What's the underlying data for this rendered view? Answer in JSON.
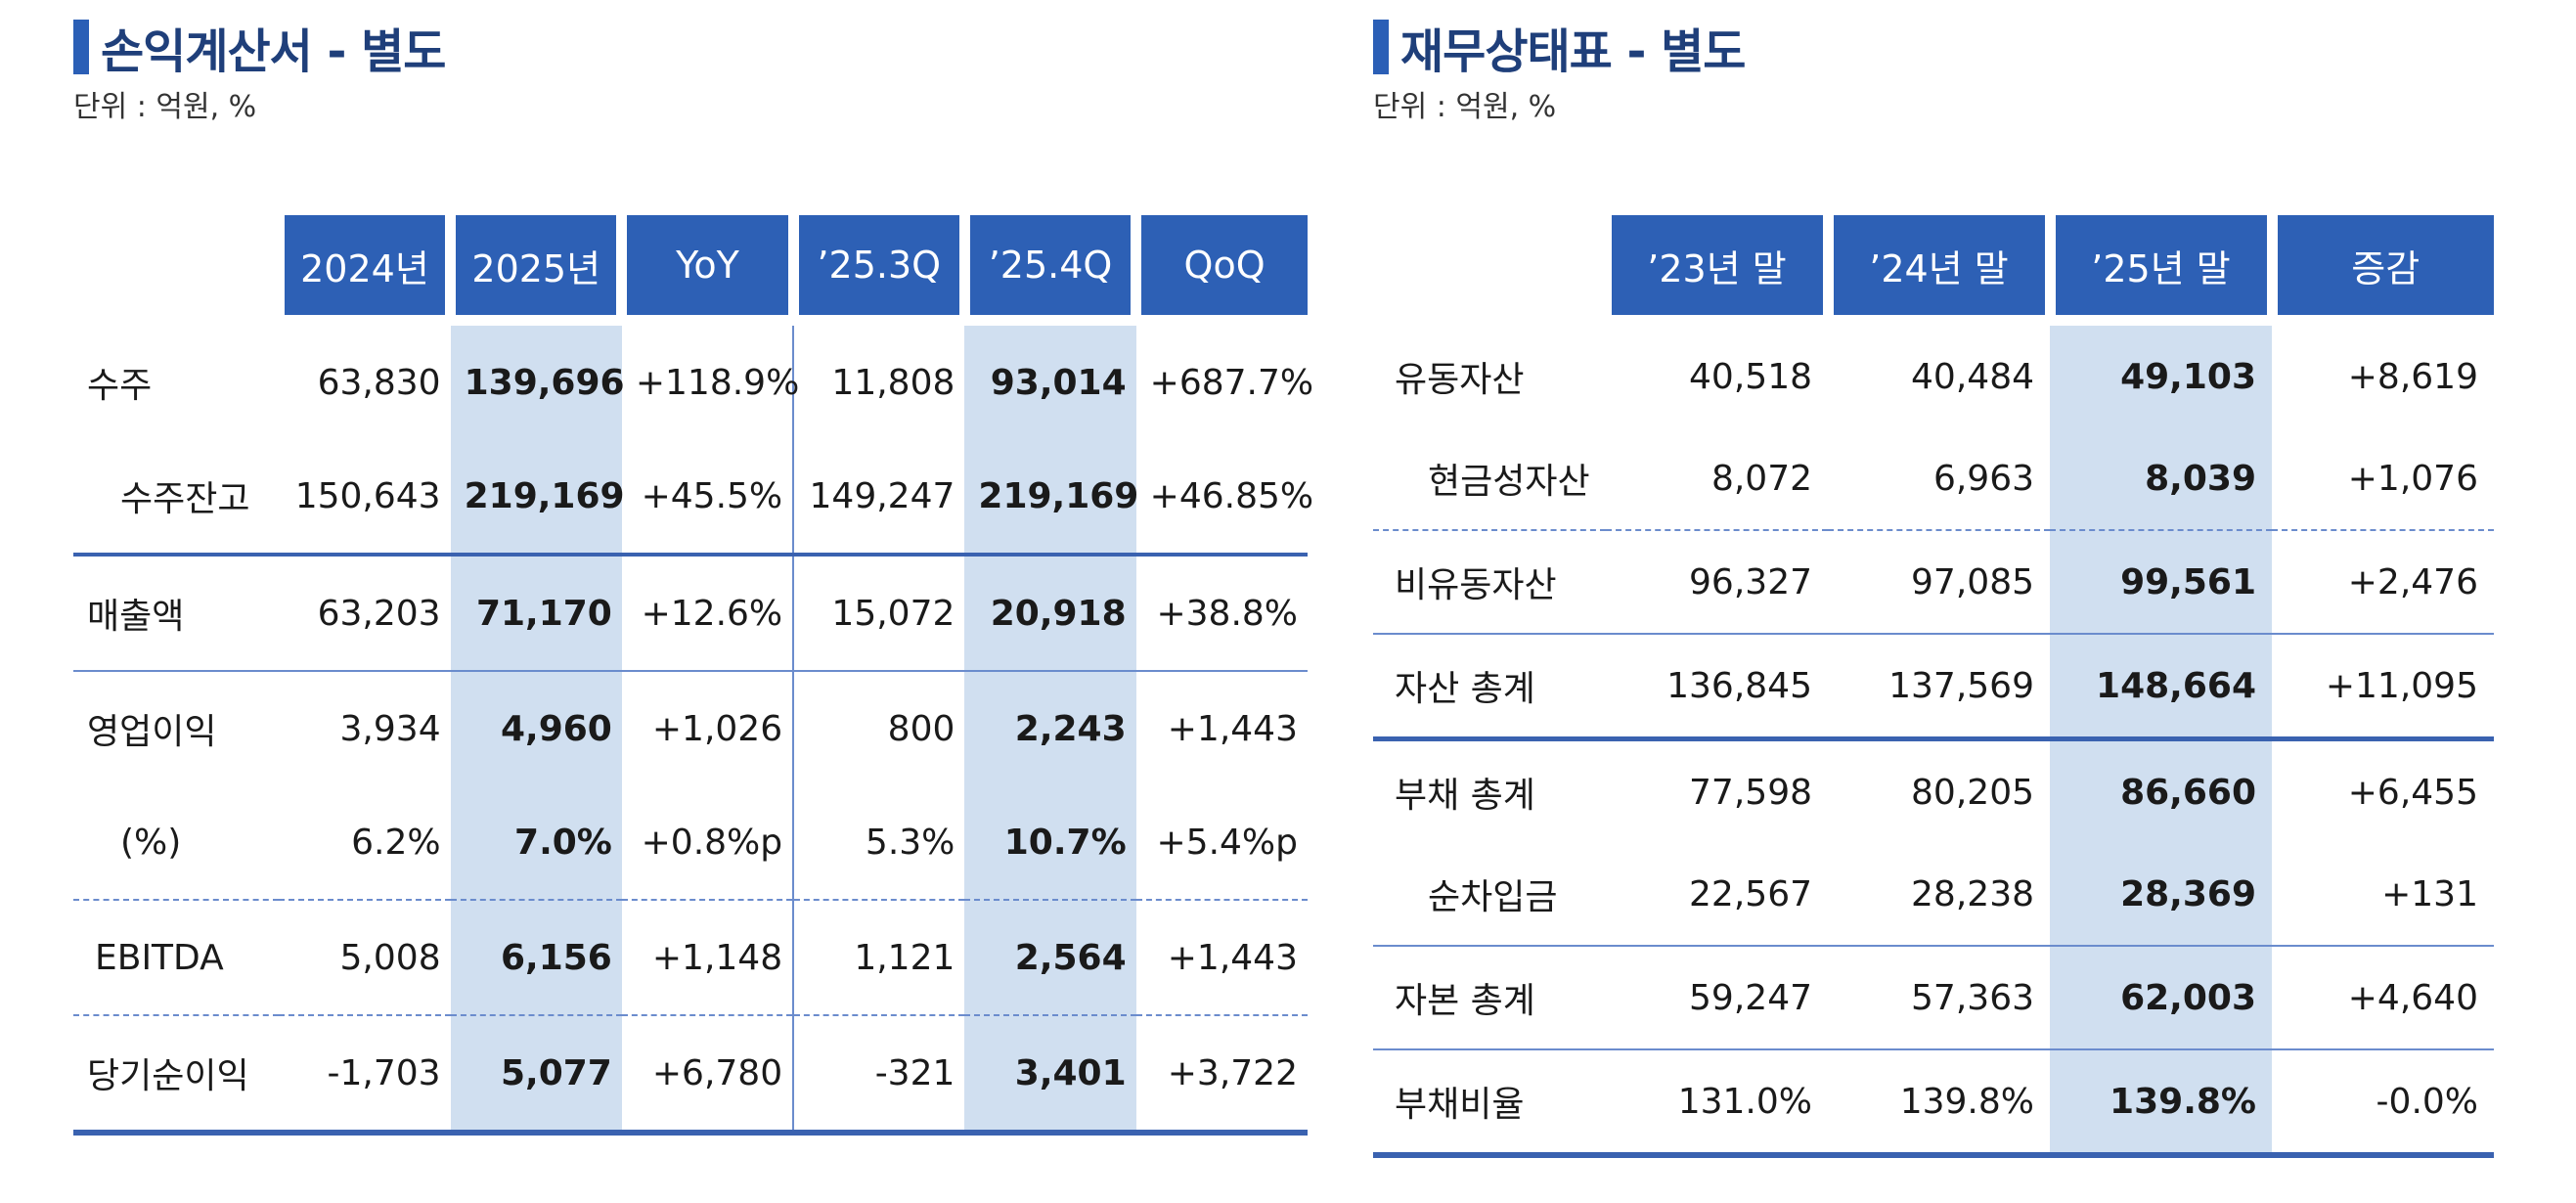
{
  "income": {
    "title": "손익계산서 - 별도",
    "unit": "단위 : 억원, %",
    "headers": [
      "2024년",
      "2025년",
      "YoY",
      "’25.3Q",
      "’25.4Q",
      "QoQ"
    ],
    "rows": [
      {
        "label": "수주",
        "values": [
          "63,830",
          "139,696",
          "+118.9%",
          "11,808",
          "93,014",
          "+687.7%"
        ]
      },
      {
        "label": "수주잔고",
        "values": [
          "150,643",
          "219,169",
          "+45.5%",
          "149,247",
          "219,169",
          "+46.85%"
        ]
      },
      {
        "label": "매출액",
        "values": [
          "63,203",
          "71,170",
          "+12.6%",
          "15,072",
          "20,918",
          "+38.8%"
        ]
      },
      {
        "label": "영업이익",
        "values": [
          "3,934",
          "4,960",
          "+1,026",
          "800",
          "2,243",
          "+1,443"
        ]
      },
      {
        "label": "(%)",
        "values": [
          "6.2%",
          "7.0%",
          "+0.8%p",
          "5.3%",
          "10.7%",
          "+5.4%p"
        ]
      },
      {
        "label": "EBITDA",
        "values": [
          "5,008",
          "6,156",
          "+1,148",
          "1,121",
          "2,564",
          "+1,443"
        ]
      },
      {
        "label": "당기순이익",
        "values": [
          "-1,703",
          "5,077",
          "+6,780",
          "-321",
          "3,401",
          "+3,722"
        ]
      }
    ]
  },
  "balance": {
    "title": "재무상태표 - 별도",
    "unit": "단위 : 억원, %",
    "headers": [
      "’23년 말",
      "’24년 말",
      "’25년 말",
      "증감"
    ],
    "rows": [
      {
        "label": "유동자산",
        "values": [
          "40,518",
          "40,484",
          "49,103",
          "+8,619"
        ]
      },
      {
        "label": "현금성자산",
        "values": [
          "8,072",
          "6,963",
          "8,039",
          "+1,076"
        ]
      },
      {
        "label": "비유동자산",
        "values": [
          "96,327",
          "97,085",
          "99,561",
          "+2,476"
        ]
      },
      {
        "label": "자산 총계",
        "values": [
          "136,845",
          "137,569",
          "148,664",
          "+11,095"
        ]
      },
      {
        "label": "부채 총계",
        "values": [
          "77,598",
          "80,205",
          "86,660",
          "+6,455"
        ]
      },
      {
        "label": "순차입금",
        "values": [
          "22,567",
          "28,238",
          "28,369",
          "+131"
        ]
      },
      {
        "label": "자본 총계",
        "values": [
          "59,247",
          "57,363",
          "62,003",
          "+4,640"
        ]
      },
      {
        "label": "부채비율",
        "values": [
          "131.0%",
          "139.8%",
          "139.8%",
          "-0.0%"
        ]
      }
    ]
  },
  "colors": {
    "accent": "#2d60b5",
    "highlight": "#d0dff0",
    "title": "#1f3f7a"
  }
}
